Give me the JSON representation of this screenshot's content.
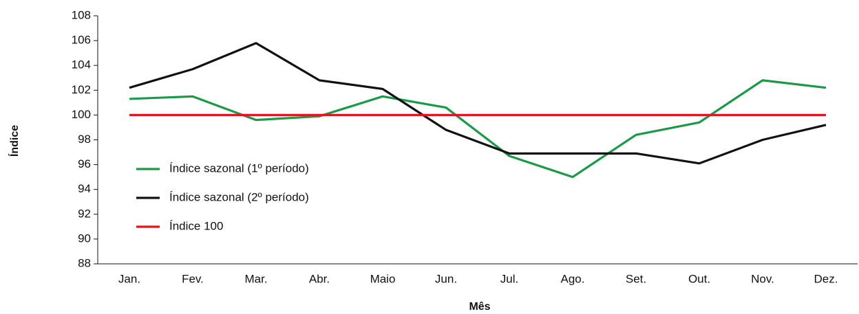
{
  "chart_data": {
    "type": "line",
    "x_label": "Mês",
    "y_label": "Índice",
    "categories": [
      "Jan.",
      "Fev.",
      "Mar.",
      "Abr.",
      "Maio",
      "Jun.",
      "Jul.",
      "Ago.",
      "Set.",
      "Out.",
      "Nov.",
      "Dez."
    ],
    "series": [
      {
        "name": "Índice sazonal (1º período)",
        "color": "#1a9a46",
        "values": [
          101.3,
          101.5,
          99.6,
          99.9,
          101.5,
          100.6,
          96.7,
          95.0,
          98.4,
          99.4,
          102.8,
          102.2
        ]
      },
      {
        "name": "Índice sazonal (2º período)",
        "color": "#111111",
        "values": [
          102.2,
          103.7,
          105.8,
          102.8,
          102.1,
          98.8,
          96.9,
          96.9,
          96.9,
          96.1,
          98.0,
          99.2
        ]
      },
      {
        "name": "Índice 100",
        "color": "#e2141c",
        "values": [
          100,
          100,
          100,
          100,
          100,
          100,
          100,
          100,
          100,
          100,
          100,
          100
        ]
      }
    ],
    "ylim": [
      88,
      108
    ],
    "yticks": [
      88,
      90,
      92,
      94,
      96,
      98,
      100,
      102,
      104,
      106,
      108
    ],
    "grid": false,
    "legend": "left"
  }
}
